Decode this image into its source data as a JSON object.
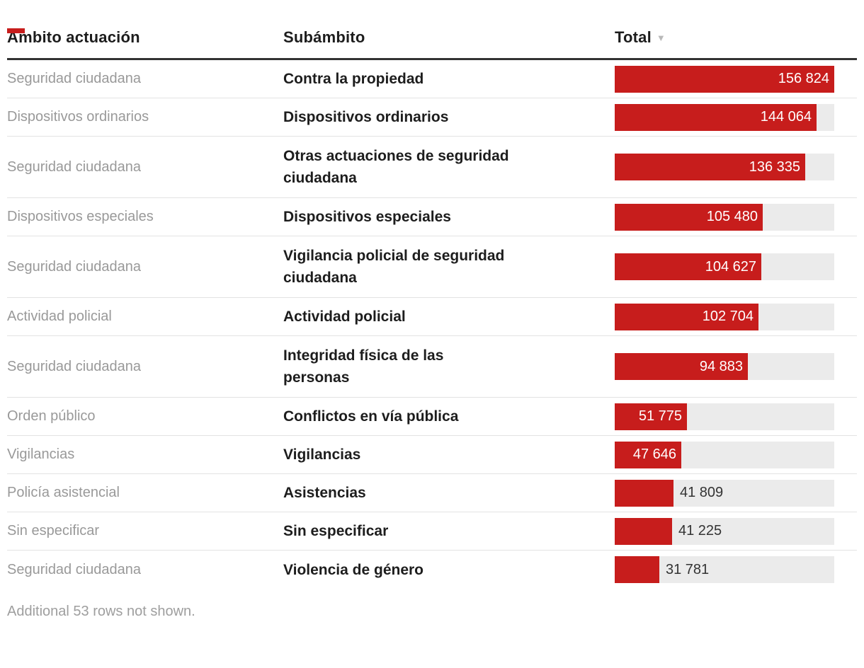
{
  "header": {
    "ambito": "Ámbito actuación",
    "subambito": "Subámbito",
    "total": "Total",
    "sort_icon": "▼"
  },
  "colors": {
    "bar": "#c71d1c",
    "track": "#ebebeb",
    "header_text": "#1d1d1d",
    "muted_text": "#999999",
    "rule": "#333333",
    "separator": "#e3e3e3"
  },
  "rows": [
    {
      "ambito": "Seguridad ciudadana",
      "subambito": "Contra la propiedad",
      "value": 156824,
      "label": "156 824"
    },
    {
      "ambito": "Dispositivos ordinarios",
      "subambito": "Dispositivos ordinarios",
      "value": 144064,
      "label": "144 064"
    },
    {
      "ambito": "Seguridad ciudadana",
      "subambito": "Otras actuaciones de seguridad\nciudadana",
      "value": 136335,
      "label": "136 335"
    },
    {
      "ambito": "Dispositivos especiales",
      "subambito": "Dispositivos especiales",
      "value": 105480,
      "label": "105 480"
    },
    {
      "ambito": "Seguridad ciudadana",
      "subambito": "Vigilancia policial de seguridad\nciudadana",
      "value": 104627,
      "label": "104 627"
    },
    {
      "ambito": "Actividad policial",
      "subambito": "Actividad policial",
      "value": 102704,
      "label": "102 704"
    },
    {
      "ambito": "Seguridad ciudadana",
      "subambito": "Integridad física de las\npersonas",
      "value": 94883,
      "label": "94 883"
    },
    {
      "ambito": "Orden público",
      "subambito": "Conflictos en vía pública",
      "value": 51775,
      "label": "51 775"
    },
    {
      "ambito": "Vigilancias",
      "subambito": "Vigilancias",
      "value": 47646,
      "label": "47 646"
    },
    {
      "ambito": "Policía asistencial",
      "subambito": "Asistencias",
      "value": 41809,
      "label": "41 809"
    },
    {
      "ambito": "Sin especificar",
      "subambito": "Sin especificar",
      "value": 41225,
      "label": "41 225"
    },
    {
      "ambito": "Seguridad ciudadana",
      "subambito": "Violencia de género",
      "value": 31781,
      "label": "31 781"
    }
  ],
  "footer": {
    "note": "Additional 53 rows not shown."
  },
  "chart_data": {
    "type": "bar",
    "orientation": "horizontal",
    "sorted_by": "Total",
    "sort_direction": "descending",
    "columns": [
      "Ámbito actuación",
      "Subámbito",
      "Total"
    ],
    "categories": [
      "Contra la propiedad",
      "Dispositivos ordinarios",
      "Otras actuaciones de seguridad ciudadana",
      "Dispositivos especiales",
      "Vigilancia policial de seguridad ciudadana",
      "Actividad policial",
      "Integridad física de las personas",
      "Conflictos en vía pública",
      "Vigilancias",
      "Asistencias",
      "Sin especificar",
      "Violencia de género"
    ],
    "groups": [
      "Seguridad ciudadana",
      "Dispositivos ordinarios",
      "Seguridad ciudadana",
      "Dispositivos especiales",
      "Seguridad ciudadana",
      "Actividad policial",
      "Seguridad ciudadana",
      "Orden público",
      "Vigilancias",
      "Policía asistencial",
      "Sin especificar",
      "Seguridad ciudadana"
    ],
    "values": [
      156824,
      144064,
      136335,
      105480,
      104627,
      102704,
      94883,
      51775,
      47646,
      41809,
      41225,
      31781
    ],
    "xlim": [
      0,
      156824
    ],
    "note": "Additional 53 rows not shown."
  }
}
